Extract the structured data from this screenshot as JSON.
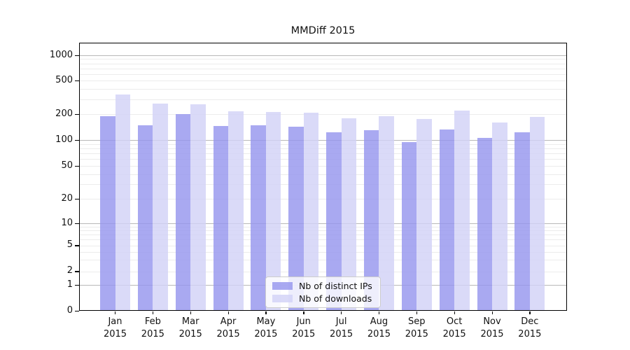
{
  "chart_data": {
    "type": "bar",
    "title": "MMDiff 2015",
    "x": [
      "Jan 2015",
      "Feb 2015",
      "Mar 2015",
      "Apr 2015",
      "May 2015",
      "Jun 2015",
      "Jul 2015",
      "Aug 2015",
      "Sep 2015",
      "Oct 2015",
      "Nov 2015",
      "Dec 2015"
    ],
    "xticklabels_line1": [
      "Jan",
      "Feb",
      "Mar",
      "Apr",
      "May",
      "Jun",
      "Jul",
      "Aug",
      "Sep",
      "Oct",
      "Nov",
      "Dec"
    ],
    "xticklabels_line2": "2015",
    "series": [
      {
        "name": "Nb of distinct IPs",
        "color": "#9696ee",
        "values": [
          190,
          150,
          200,
          146,
          148,
          142,
          123,
          130,
          95,
          133,
          105,
          122
        ]
      },
      {
        "name": "Nb of downloads",
        "color": "#d2d2f6",
        "values": [
          345,
          268,
          262,
          217,
          213,
          207,
          179,
          191,
          175,
          221,
          160,
          188
        ]
      }
    ],
    "yscale": "symlog",
    "yticks": [
      0,
      1,
      2,
      5,
      10,
      20,
      50,
      100,
      200,
      500,
      1000
    ],
    "ylim": [
      0,
      1380
    ],
    "grid": true,
    "legend_position": "lower center"
  }
}
